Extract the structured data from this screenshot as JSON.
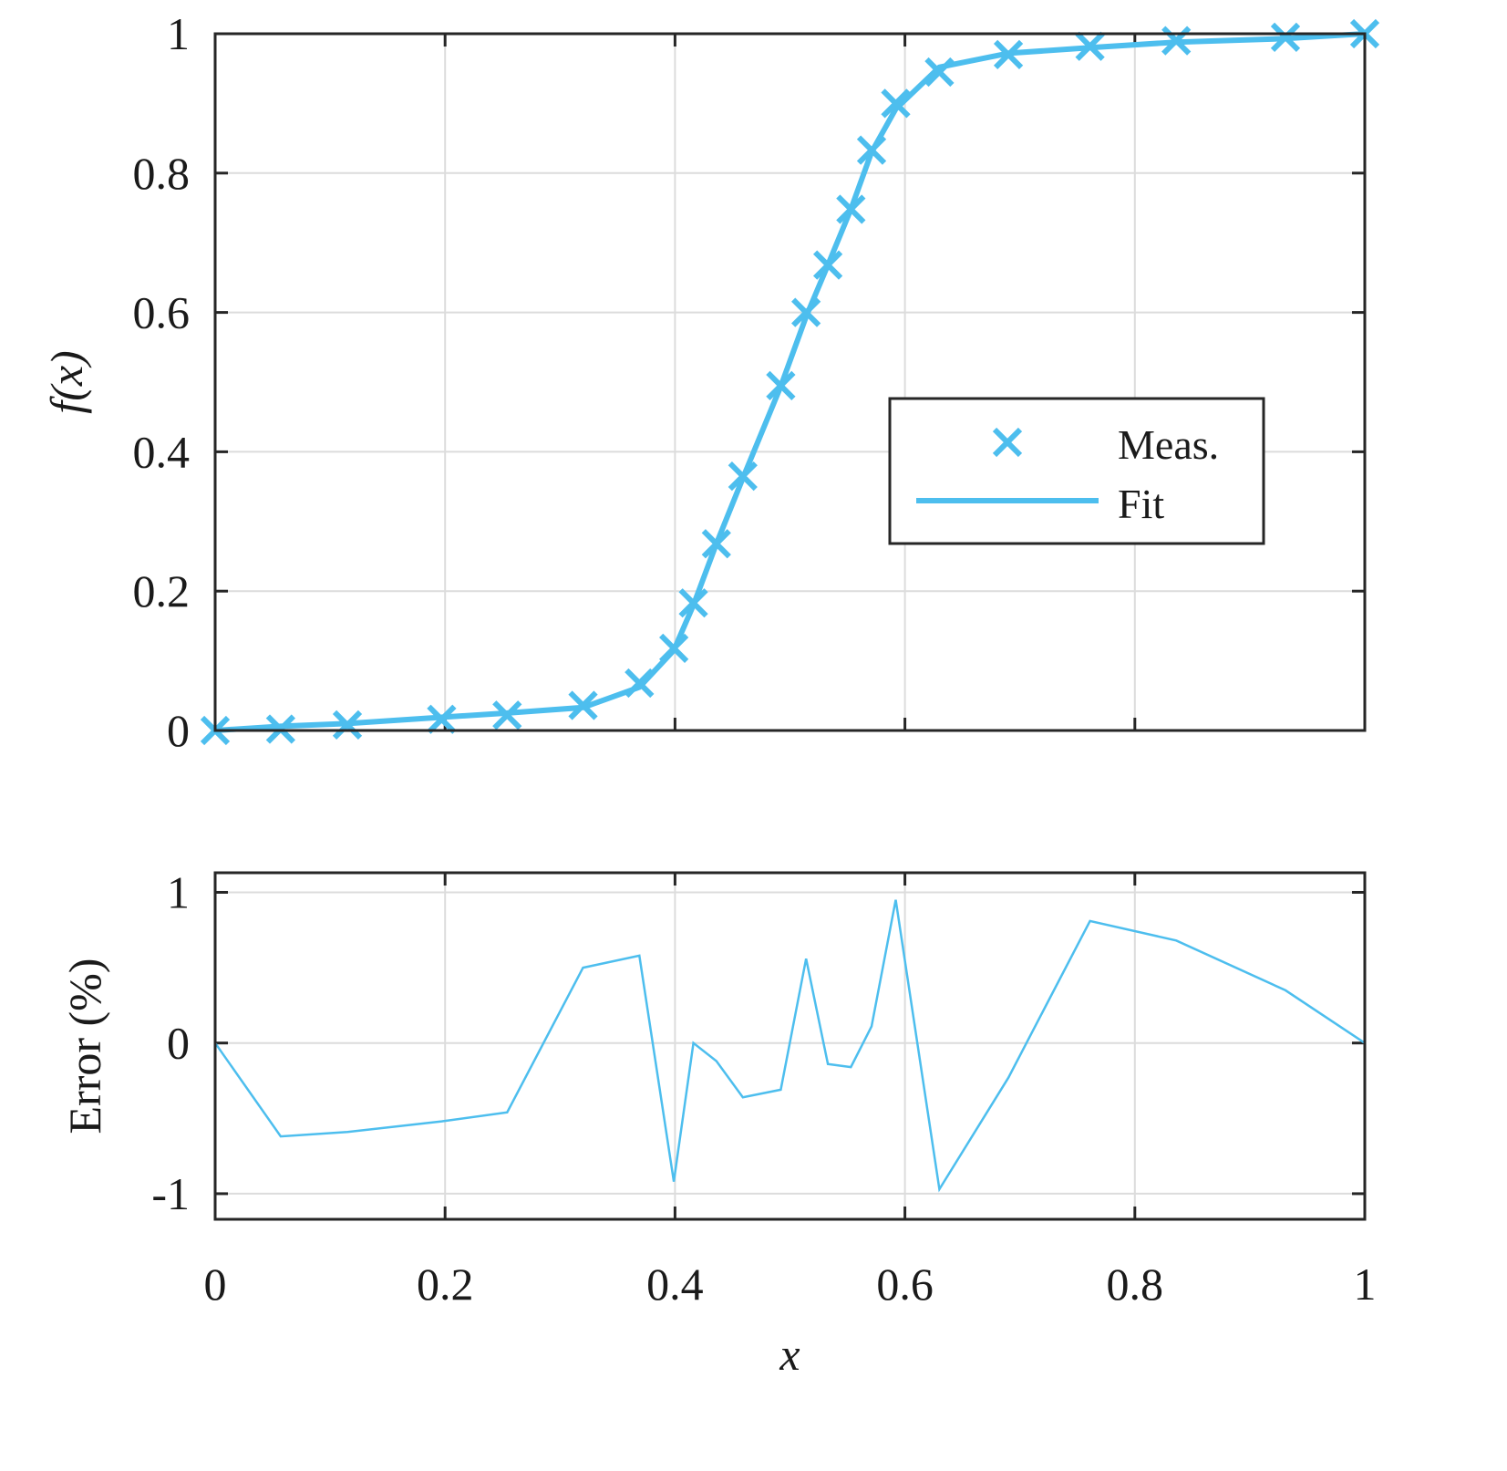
{
  "colors": {
    "series": "#4dbeee",
    "axes": "#262626",
    "grid": "#dcdcdc"
  },
  "chart_data": [
    {
      "type": "line",
      "panel": "top",
      "xlabel": "",
      "ylabel": "f(x)",
      "xlim": [
        0,
        1
      ],
      "ylim": [
        0,
        1
      ],
      "grid": true,
      "x_ticks": [
        0,
        0.2,
        0.4,
        0.6,
        0.8,
        1
      ],
      "y_ticks": [
        0,
        0.2,
        0.4,
        0.6,
        0.8,
        1
      ],
      "x_tick_labels": [
        "",
        "",
        "",
        "",
        "",
        ""
      ],
      "y_tick_labels": [
        "0",
        "0.2",
        "0.4",
        "0.6",
        "0.8",
        "1"
      ],
      "legend": {
        "position": "center-right",
        "entries": [
          "Meas.",
          "Fit"
        ]
      },
      "series": [
        {
          "name": "Meas.",
          "style": "markers-x",
          "x": [
            0,
            0.057,
            0.115,
            0.197,
            0.254,
            0.32,
            0.369,
            0.399,
            0.416,
            0.436,
            0.459,
            0.492,
            0.514,
            0.533,
            0.553,
            0.571,
            0.592,
            0.63,
            0.69,
            0.761,
            0.836,
            0.931,
            1.0
          ],
          "y": [
            0,
            0.002,
            0.008,
            0.016,
            0.022,
            0.036,
            0.068,
            0.118,
            0.183,
            0.268,
            0.365,
            0.495,
            0.6,
            0.668,
            0.748,
            0.833,
            0.9,
            0.945,
            0.97,
            0.982,
            0.99,
            0.995,
            1.0
          ]
        },
        {
          "name": "Fit",
          "style": "line",
          "x": [
            0,
            0.057,
            0.115,
            0.197,
            0.254,
            0.32,
            0.369,
            0.399,
            0.416,
            0.436,
            0.459,
            0.492,
            0.514,
            0.533,
            0.553,
            0.571,
            0.592,
            0.63,
            0.69,
            0.761,
            0.836,
            0.931,
            1.0
          ],
          "y": [
            0,
            0.006,
            0.01,
            0.019,
            0.025,
            0.033,
            0.062,
            0.115,
            0.18,
            0.268,
            0.362,
            0.494,
            0.594,
            0.668,
            0.748,
            0.83,
            0.892,
            0.952,
            0.972,
            0.98,
            0.988,
            0.993,
            1.0
          ]
        }
      ]
    },
    {
      "type": "line",
      "panel": "bottom",
      "xlabel": "x",
      "ylabel": "Error (%)",
      "xlim": [
        0,
        1
      ],
      "ylim": [
        -1.17,
        1.13
      ],
      "grid": true,
      "x_ticks": [
        0,
        0.2,
        0.4,
        0.6,
        0.8,
        1
      ],
      "y_ticks": [
        -1,
        0,
        1
      ],
      "x_tick_labels": [
        "0",
        "0.2",
        "0.4",
        "0.6",
        "0.8",
        "1"
      ],
      "y_tick_labels": [
        "-1",
        "0",
        "1"
      ],
      "series": [
        {
          "style": "line",
          "x": [
            0,
            0.057,
            0.115,
            0.197,
            0.254,
            0.32,
            0.369,
            0.399,
            0.416,
            0.436,
            0.459,
            0.492,
            0.514,
            0.533,
            0.553,
            0.571,
            0.592,
            0.63,
            0.69,
            0.761,
            0.836,
            0.931,
            1.0
          ],
          "y": [
            0,
            -0.62,
            -0.59,
            -0.52,
            -0.46,
            0.5,
            0.58,
            -0.92,
            0.0,
            -0.12,
            -0.36,
            -0.31,
            0.56,
            -0.14,
            -0.16,
            0.11,
            0.95,
            -0.97,
            -0.23,
            0.81,
            0.68,
            0.35,
            0.0
          ]
        }
      ]
    }
  ]
}
